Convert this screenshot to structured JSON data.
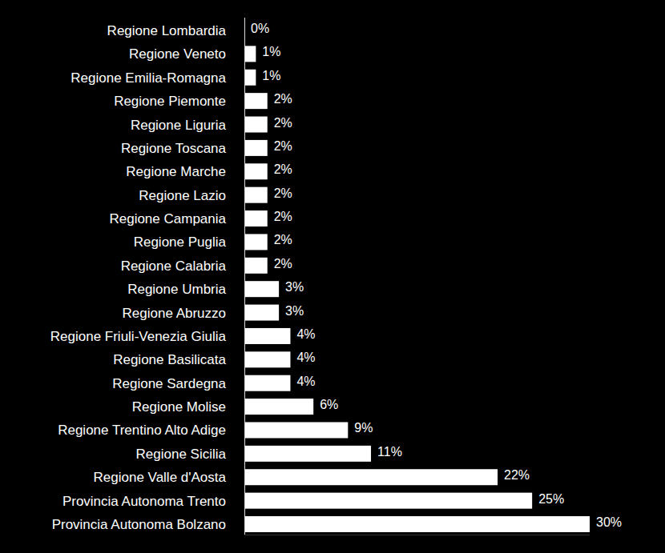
{
  "chart_data": {
    "type": "bar",
    "orientation": "horizontal",
    "categories": [
      "Regione Lombardia",
      "Regione Veneto",
      "Regione Emilia-Romagna",
      "Regione Piemonte",
      "Regione Liguria",
      "Regione Toscana",
      "Regione Marche",
      "Regione Lazio",
      "Regione Campania",
      "Regione Puglia",
      "Regione Calabria",
      "Regione Umbria",
      "Regione Abruzzo",
      "Regione Friuli-Venezia Giulia",
      "Regione Basilicata",
      "Regione Sardegna",
      "Regione Molise",
      "Regione Trentino Alto Adige",
      "Regione Sicilia",
      "Regione Valle d'Aosta",
      "Provincia Autonoma Trento",
      "Provincia Autonoma Bolzano"
    ],
    "values": [
      0,
      1,
      1,
      2,
      2,
      2,
      2,
      2,
      2,
      2,
      2,
      3,
      3,
      4,
      4,
      4,
      6,
      9,
      11,
      22,
      25,
      30
    ],
    "value_labels": [
      "0%",
      "1%",
      "1%",
      "2%",
      "2%",
      "2%",
      "2%",
      "2%",
      "2%",
      "2%",
      "2%",
      "3%",
      "3%",
      "4%",
      "4%",
      "4%",
      "6%",
      "9%",
      "11%",
      "22%",
      "25%",
      "30%"
    ],
    "color": "#ffffff",
    "xlim": [
      0,
      30
    ],
    "data_labels": true,
    "tick_labels": "y",
    "grid": false
  }
}
